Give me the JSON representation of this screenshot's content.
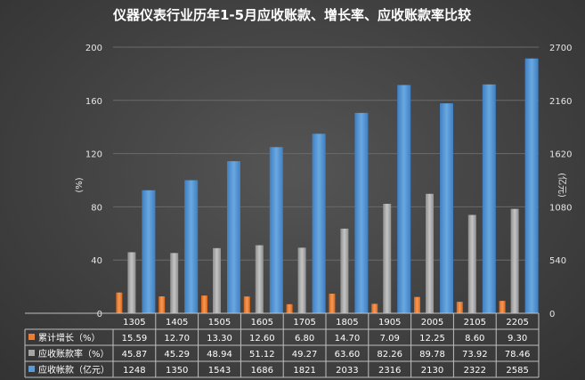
{
  "chart_data": {
    "type": "bar",
    "title": "仪器仪表行业历年1-5月应收账款、增长率、应收账款率比较",
    "categories": [
      "1305",
      "1405",
      "1505",
      "1605",
      "1705",
      "1805",
      "1905",
      "2005",
      "2105",
      "2205"
    ],
    "left_axis": {
      "label": "(%)",
      "ylim": [
        0,
        200
      ],
      "ticks": [
        "0",
        "40",
        "80",
        "120",
        "160",
        "200"
      ]
    },
    "right_axis": {
      "label": "(亿元)",
      "ylim": [
        0,
        2700
      ],
      "ticks": [
        "0",
        "540",
        "1080",
        "1620",
        "2160",
        "2700"
      ]
    },
    "series": [
      {
        "name": "累计增长（%）",
        "axis": "left",
        "color": "#ed7d31",
        "values": [
          15.59,
          12.7,
          13.3,
          12.6,
          6.8,
          14.7,
          7.09,
          12.25,
          8.6,
          9.3
        ],
        "labels": [
          "15.59",
          "12.70",
          "13.30",
          "12.60",
          "6.80",
          "14.70",
          "7.09",
          "12.25",
          "8.60",
          "9.30"
        ]
      },
      {
        "name": "应收账款率（%）",
        "axis": "left",
        "color": "#a5a5a5",
        "values": [
          45.87,
          45.29,
          48.94,
          51.12,
          49.27,
          63.6,
          82.26,
          89.78,
          73.92,
          78.46
        ],
        "labels": [
          "45.87",
          "45.29",
          "48.94",
          "51.12",
          "49.27",
          "63.60",
          "82.26",
          "89.78",
          "73.92",
          "78.46"
        ]
      },
      {
        "name": "应收帐款（亿元）",
        "axis": "right",
        "color": "#5b9bd5",
        "values": [
          1248,
          1350,
          1543,
          1686,
          1821,
          2033,
          2316,
          2130,
          2322,
          2585
        ],
        "labels": [
          "1248",
          "1350",
          "1543",
          "1686",
          "1821",
          "2033",
          "2316",
          "2130",
          "2322",
          "2585"
        ]
      }
    ],
    "grid": true,
    "legend": "data-table"
  }
}
